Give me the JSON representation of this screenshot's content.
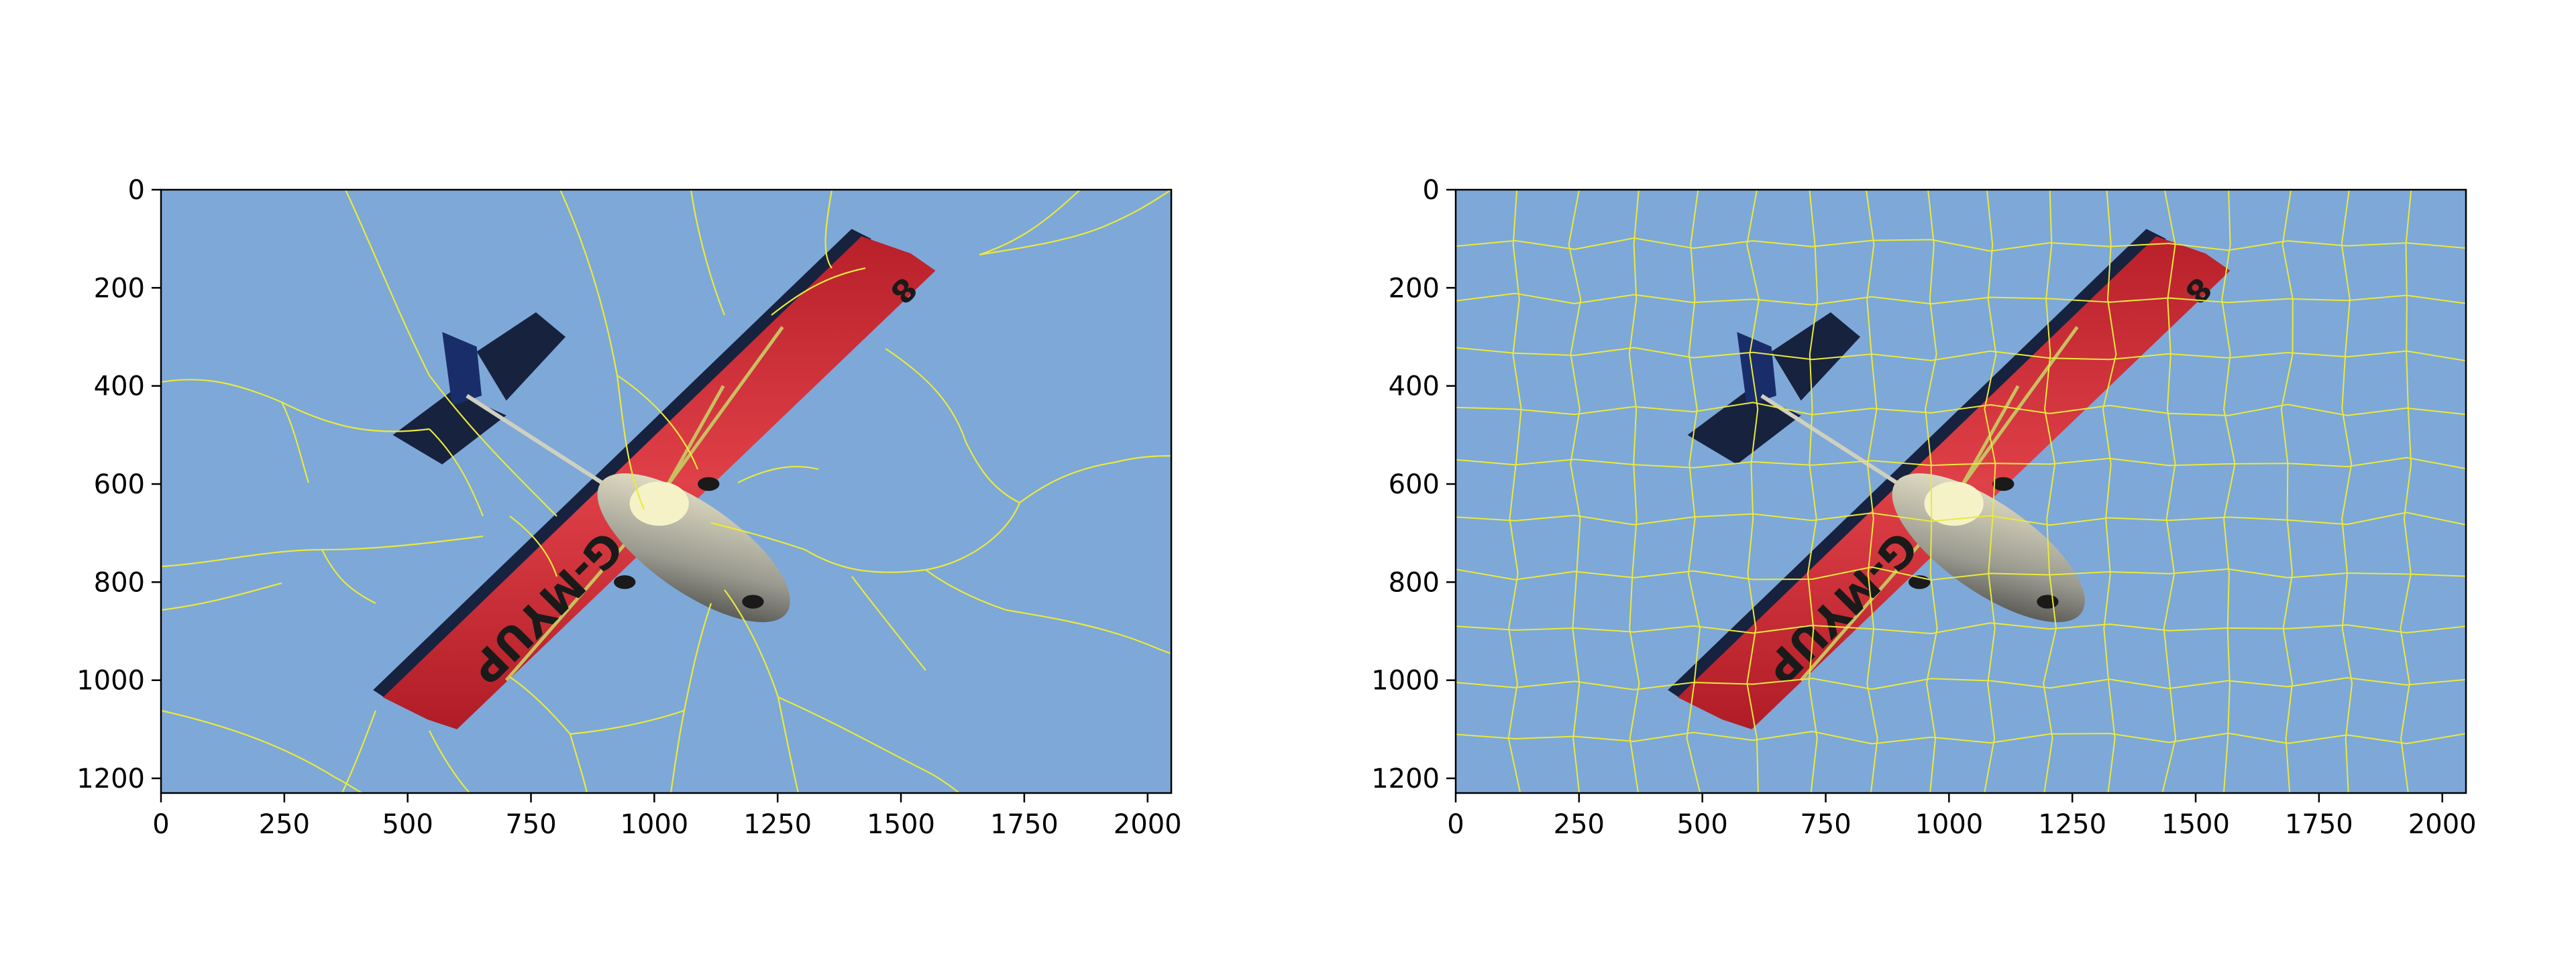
{
  "figure": {
    "panels": [
      {
        "id": "left",
        "xticks": [
          0,
          250,
          500,
          750,
          1000,
          1250,
          1500,
          1750,
          2000
        ],
        "yticks": [
          0,
          200,
          400,
          600,
          800,
          1000,
          1200
        ],
        "xlim": [
          0,
          2048
        ],
        "ylim": [
          1230,
          0
        ],
        "plane_text": "G-MYUP"
      },
      {
        "id": "right",
        "xticks": [
          0,
          250,
          500,
          750,
          1000,
          1250,
          1500,
          1750,
          2000
        ],
        "yticks": [
          0,
          200,
          400,
          600,
          800,
          1000,
          1200
        ],
        "xlim": [
          0,
          2048
        ],
        "ylim": [
          1230,
          0
        ],
        "plane_text": "G-MYUP"
      }
    ],
    "colors": {
      "sky": "#7ea8d8",
      "wing_red": "#d8333a",
      "wing_dark": "#17223f",
      "tail_blue": "#1a2d6b",
      "boundary": "#eaea3a"
    }
  }
}
